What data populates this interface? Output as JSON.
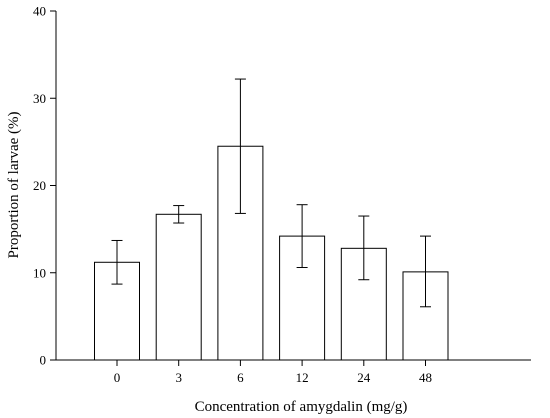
{
  "chart_data": {
    "type": "bar",
    "title": "",
    "xlabel": "Concentration of amygdalin (mg/g)",
    "ylabel": "Proportion of larvae (%)",
    "categories": [
      "0",
      "3",
      "6",
      "12",
      "24",
      "48"
    ],
    "values": [
      11.2,
      16.7,
      24.5,
      14.2,
      12.8,
      10.1
    ],
    "error_low": [
      8.7,
      15.7,
      16.8,
      10.6,
      9.2,
      6.1
    ],
    "error_high": [
      13.7,
      17.7,
      32.2,
      17.8,
      16.5,
      14.2
    ],
    "ylim": [
      0,
      40
    ],
    "yticks": [
      "0",
      "10",
      "20",
      "30",
      "40"
    ],
    "grid": false,
    "colors": {
      "bar_fill": "#ffffff",
      "bar_stroke": "#000000",
      "axis": "#000000"
    }
  }
}
